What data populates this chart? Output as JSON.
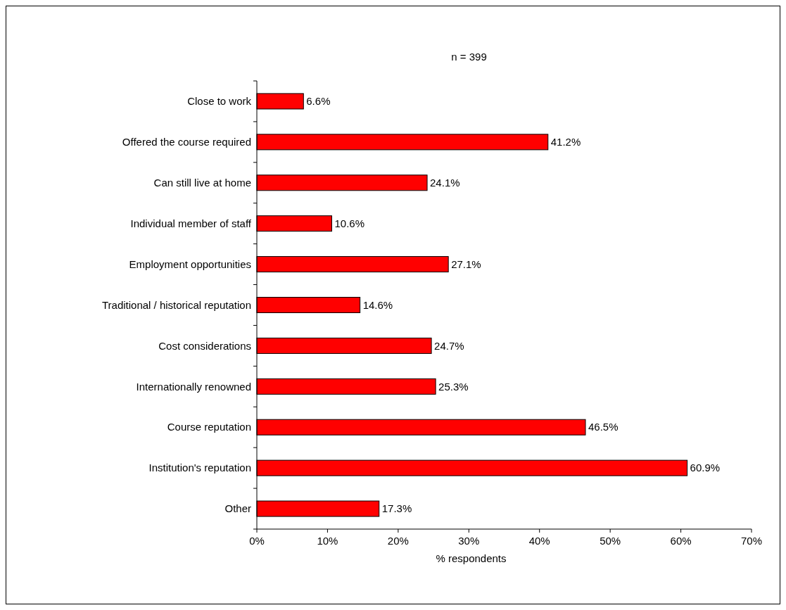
{
  "chart_data": {
    "type": "bar",
    "orientation": "horizontal",
    "title": "n = 399",
    "xlabel": "% respondents",
    "categories": [
      "Close to work",
      "Offered the course required",
      "Can still live at home",
      "Individual member of staff",
      "Employment opportunities",
      "Traditional / historical reputation",
      "Cost considerations",
      "Internationally renowned",
      "Course reputation",
      "Institution's reputation",
      "Other"
    ],
    "values": [
      6.6,
      41.2,
      24.1,
      10.6,
      27.1,
      14.6,
      24.7,
      25.3,
      46.5,
      60.9,
      17.3
    ],
    "value_labels": [
      "6.6%",
      "41.2%",
      "24.1%",
      "10.6%",
      "27.1%",
      "14.6%",
      "24.7%",
      "25.3%",
      "46.5%",
      "60.9%",
      "17.3%"
    ],
    "color": "#ff0000",
    "xlim": [
      0,
      70
    ],
    "xticks": [
      {
        "value": 0,
        "label": "0%"
      },
      {
        "value": 10,
        "label": "10%"
      },
      {
        "value": 20,
        "label": "20%"
      },
      {
        "value": 30,
        "label": "30%"
      },
      {
        "value": 40,
        "label": "40%"
      },
      {
        "value": 50,
        "label": "50%"
      },
      {
        "value": 60,
        "label": "60%"
      },
      {
        "value": 70,
        "label": "70%"
      }
    ],
    "grid": false
  }
}
